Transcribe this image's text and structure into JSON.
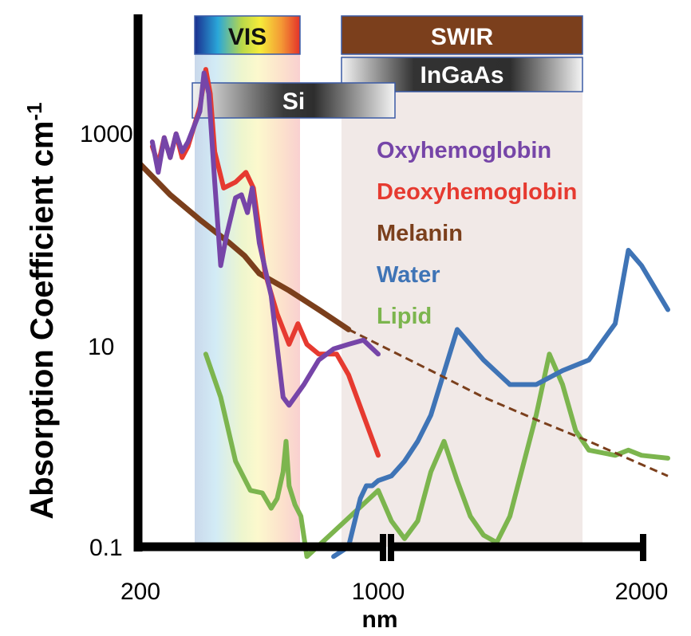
{
  "chart_data": {
    "type": "line",
    "title": "",
    "xlabel": "nm",
    "ylabel": "Absorption Coefficient cm",
    "ylabel_superscript": "-1",
    "y_scale": "log",
    "x_scale": "broken",
    "xlim": [
      200,
      2100
    ],
    "ylim": [
      0.1,
      5000
    ],
    "x_ticks": [
      "200",
      "1000",
      "2000"
    ],
    "y_ticks": [
      "0.1",
      "10",
      "1000"
    ],
    "bands": [
      {
        "label": "VIS",
        "range": [
          400,
          700
        ],
        "fill": "spectrum"
      },
      {
        "label": "SWIR",
        "range": [
          900,
          1700
        ],
        "color": "#7b3f1c"
      },
      {
        "label": "InGaAs",
        "range": [
          900,
          1700
        ],
        "fill": "gray-gradient"
      },
      {
        "label": "Si",
        "range": [
          400,
          1000
        ],
        "fill": "gray-gradient"
      }
    ],
    "legend_position": "center-right",
    "series": [
      {
        "name": "Oxyhemoglobin",
        "color": "#7645a8",
        "points": [
          [
            240,
            1000
          ],
          [
            260,
            500
          ],
          [
            280,
            1100
          ],
          [
            300,
            700
          ],
          [
            320,
            1200
          ],
          [
            340,
            800
          ],
          [
            360,
            1000
          ],
          [
            400,
            2000
          ],
          [
            414,
            4800
          ],
          [
            430,
            3000
          ],
          [
            450,
            400
          ],
          [
            470,
            60
          ],
          [
            490,
            120
          ],
          [
            520,
            280
          ],
          [
            540,
            300
          ],
          [
            560,
            200
          ],
          [
            576,
            350
          ],
          [
            600,
            100
          ],
          [
            640,
            30
          ],
          [
            680,
            3
          ],
          [
            700,
            2.5
          ],
          [
            750,
            4
          ],
          [
            800,
            7
          ],
          [
            850,
            9
          ],
          [
            900,
            10
          ],
          [
            950,
            11
          ],
          [
            1000,
            8
          ]
        ]
      },
      {
        "name": "Deoxyhemoglobin",
        "color": "#e63a30",
        "points": [
          [
            240,
            900
          ],
          [
            260,
            600
          ],
          [
            280,
            1100
          ],
          [
            300,
            700
          ],
          [
            320,
            1200
          ],
          [
            340,
            700
          ],
          [
            360,
            900
          ],
          [
            400,
            2200
          ],
          [
            420,
            5200
          ],
          [
            435,
            3000
          ],
          [
            450,
            800
          ],
          [
            480,
            350
          ],
          [
            520,
            400
          ],
          [
            555,
            500
          ],
          [
            580,
            350
          ],
          [
            620,
            50
          ],
          [
            660,
            20
          ],
          [
            700,
            10
          ],
          [
            730,
            16
          ],
          [
            760,
            10
          ],
          [
            800,
            8
          ],
          [
            860,
            8
          ],
          [
            900,
            5
          ],
          [
            950,
            2
          ],
          [
            1000,
            0.8
          ]
        ]
      },
      {
        "name": "Melanin",
        "color": "#7b3f1c",
        "extrapolated_from": 900,
        "points": [
          [
            200,
            600
          ],
          [
            300,
            300
          ],
          [
            400,
            170
          ],
          [
            500,
            100
          ],
          [
            550,
            75
          ],
          [
            600,
            50
          ],
          [
            700,
            34
          ],
          [
            800,
            22
          ],
          [
            900,
            14
          ],
          [
            1000,
            10
          ],
          [
            1200,
            5.5
          ],
          [
            1400,
            3
          ],
          [
            1600,
            1.8
          ],
          [
            1800,
            1.1
          ],
          [
            2000,
            0.65
          ],
          [
            2100,
            0.5
          ]
        ]
      },
      {
        "name": "Water",
        "color": "#3f74b6",
        "points": [
          [
            850,
            0.08
          ],
          [
            900,
            0.1
          ],
          [
            940,
            0.3
          ],
          [
            960,
            0.4
          ],
          [
            980,
            0.4
          ],
          [
            1000,
            0.45
          ],
          [
            1050,
            0.5
          ],
          [
            1100,
            0.7
          ],
          [
            1150,
            1.1
          ],
          [
            1200,
            2
          ],
          [
            1300,
            14
          ],
          [
            1400,
            7
          ],
          [
            1500,
            4
          ],
          [
            1600,
            4
          ],
          [
            1700,
            5.5
          ],
          [
            1800,
            7
          ],
          [
            1900,
            16
          ],
          [
            1950,
            85
          ],
          [
            2000,
            60
          ],
          [
            2100,
            22
          ]
        ]
      },
      {
        "name": "Lipid",
        "color": "#7cb54e",
        "points": [
          [
            420,
            8
          ],
          [
            470,
            3
          ],
          [
            520,
            0.7
          ],
          [
            570,
            0.36
          ],
          [
            610,
            0.34
          ],
          [
            640,
            0.24
          ],
          [
            660,
            0.3
          ],
          [
            680,
            0.55
          ],
          [
            690,
            1.1
          ],
          [
            700,
            0.4
          ],
          [
            720,
            0.26
          ],
          [
            740,
            0.2
          ],
          [
            760,
            0.08
          ],
          [
            1000,
            0.36
          ],
          [
            1050,
            0.18
          ],
          [
            1100,
            0.12
          ],
          [
            1150,
            0.18
          ],
          [
            1200,
            0.55
          ],
          [
            1250,
            1.1
          ],
          [
            1300,
            0.45
          ],
          [
            1350,
            0.2
          ],
          [
            1400,
            0.13
          ],
          [
            1450,
            0.11
          ],
          [
            1500,
            0.2
          ],
          [
            1600,
            2
          ],
          [
            1650,
            8
          ],
          [
            1700,
            4
          ],
          [
            1750,
            1.4
          ],
          [
            1800,
            0.9
          ],
          [
            1900,
            0.8
          ],
          [
            1950,
            0.9
          ],
          [
            2000,
            0.8
          ],
          [
            2100,
            0.75
          ]
        ]
      }
    ]
  }
}
